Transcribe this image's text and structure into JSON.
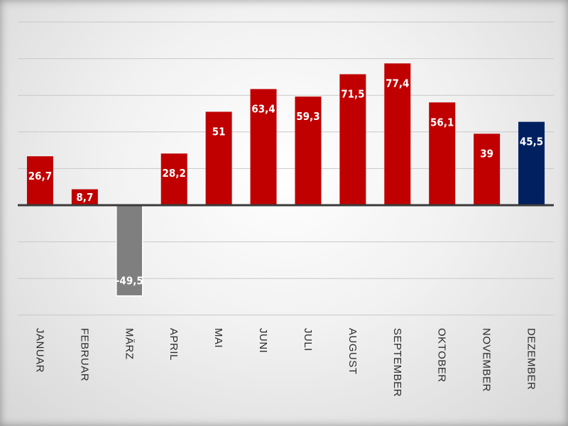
{
  "chart_data": {
    "type": "bar",
    "title": "",
    "xlabel": "",
    "ylabel": "",
    "categories": [
      "JANUAR",
      "FEBRUAR",
      "MÄRZ",
      "APRIL",
      "MAI",
      "JUNI",
      "JULI",
      "AUGUST",
      "SEPTEMBER",
      "OKTOBER",
      "NOVEMBER",
      "DEZEMBER"
    ],
    "values": [
      26.7,
      8.7,
      -49.5,
      28.2,
      51,
      63.4,
      59.3,
      71.5,
      77.4,
      56.1,
      39,
      45.5
    ],
    "data_labels": [
      "26,7",
      "8,7",
      "-49,5",
      "28,2",
      "51",
      "63,4",
      "59,3",
      "71,5",
      "77,4",
      "56,1",
      "39",
      "45,5"
    ],
    "ylim": [
      -60,
      110
    ],
    "grid_step": 20,
    "grid": true,
    "legend": "none",
    "bar_colors": [
      "#c00000",
      "#c00000",
      "#7f7f7f",
      "#c00000",
      "#c00000",
      "#c00000",
      "#c00000",
      "#c00000",
      "#c00000",
      "#c00000",
      "#c00000",
      "#002060"
    ]
  }
}
